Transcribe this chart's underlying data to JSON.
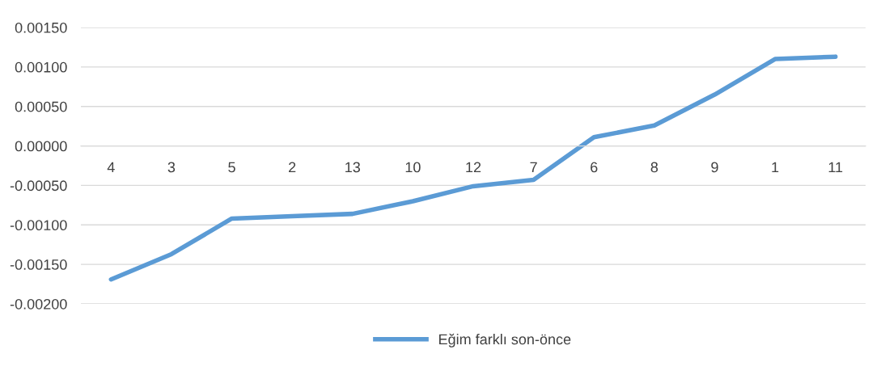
{
  "chart_data": {
    "type": "line",
    "categories": [
      "4",
      "3",
      "5",
      "2",
      "13",
      "10",
      "12",
      "7",
      "6",
      "8",
      "9",
      "1",
      "11"
    ],
    "series": [
      {
        "name": "Eğim farklı son-önce",
        "color": "#5b9bd5",
        "values": [
          -0.00169,
          -0.00137,
          -0.00092,
          -0.00089,
          -0.00086,
          -0.0007,
          -0.00051,
          -0.00043,
          0.00011,
          0.00026,
          0.00065,
          0.0011,
          0.00113
        ]
      }
    ],
    "ylim": [
      -0.002,
      0.0015
    ],
    "yticks": [
      {
        "value": -0.002,
        "label": "-0.00200"
      },
      {
        "value": -0.0015,
        "label": "-0.00150"
      },
      {
        "value": -0.001,
        "label": "-0.00100"
      },
      {
        "value": -0.0005,
        "label": "-0.00050"
      },
      {
        "value": 0,
        "label": "0.00000"
      },
      {
        "value": 0.0005,
        "label": "0.00050"
      },
      {
        "value": 0.001,
        "label": "0.00100"
      },
      {
        "value": 0.0015,
        "label": "0.00150"
      }
    ],
    "grid": "y",
    "legend": "bottom",
    "marker": "none",
    "line_style": "solid"
  }
}
